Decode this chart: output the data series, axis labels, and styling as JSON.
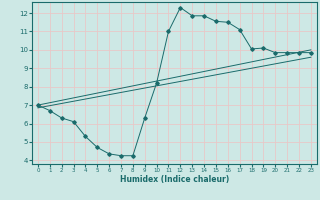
{
  "title": "",
  "xlabel": "Humidex (Indice chaleur)",
  "ylabel": "",
  "xlim": [
    -0.5,
    23.5
  ],
  "ylim": [
    3.8,
    12.6
  ],
  "xticks": [
    0,
    1,
    2,
    3,
    4,
    5,
    6,
    7,
    8,
    9,
    10,
    11,
    12,
    13,
    14,
    15,
    16,
    17,
    18,
    19,
    20,
    21,
    22,
    23
  ],
  "yticks": [
    4,
    5,
    6,
    7,
    8,
    9,
    10,
    11,
    12
  ],
  "bg_color": "#cde8e5",
  "line_color": "#1a6b6b",
  "grid_color": "#e8c8c8",
  "curve1_x": [
    0,
    1,
    2,
    3,
    4,
    5,
    6,
    7,
    8,
    9,
    10,
    11,
    12,
    13,
    14,
    15,
    16,
    17,
    18,
    19,
    20,
    21,
    22,
    23
  ],
  "curve1_y": [
    7.0,
    6.7,
    6.3,
    6.1,
    5.3,
    4.7,
    4.35,
    4.25,
    4.25,
    6.3,
    8.2,
    11.0,
    12.3,
    11.85,
    11.85,
    11.55,
    11.5,
    11.1,
    10.05,
    10.1,
    9.85,
    9.85,
    9.85,
    9.85
  ],
  "curve2_x": [
    0,
    23
  ],
  "curve2_y": [
    7.0,
    10.0
  ],
  "curve3_x": [
    0,
    23
  ],
  "curve3_y": [
    6.85,
    9.6
  ]
}
